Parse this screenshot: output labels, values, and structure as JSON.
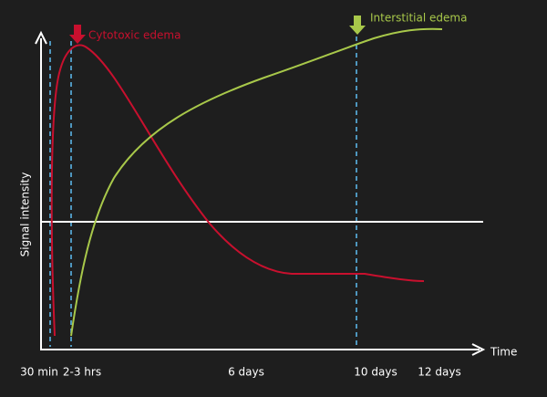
{
  "axes": {
    "y_label": "Signal intensity",
    "x_label": "Time"
  },
  "x_labels": [
    "30 min",
    "2-3 hrs",
    "6 days",
    "10 days",
    "12 days"
  ],
  "curves": [
    {
      "label": "Cytotoxic edema"
    },
    {
      "label": "Interstitial edema"
    }
  ]
}
